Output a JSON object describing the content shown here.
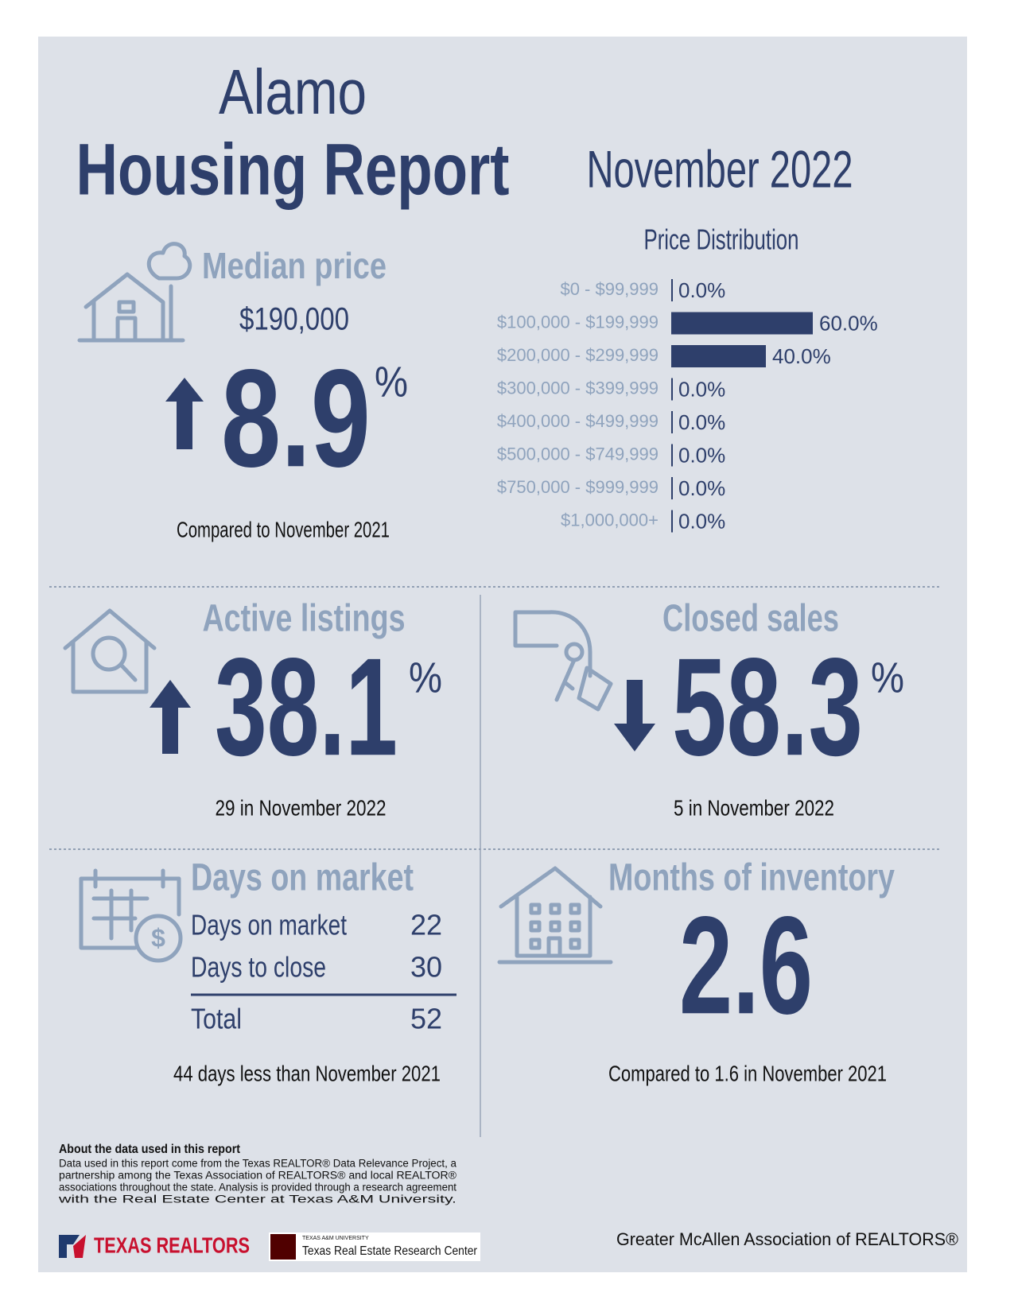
{
  "header": {
    "title_line1": "Alamo",
    "title_line2": "Housing Report",
    "period": "November 2022"
  },
  "median_price": {
    "title": "Median price",
    "price": "$190,000",
    "change": "8.9",
    "unit": "%",
    "comparison": "Compared to November 2021"
  },
  "price_distribution": {
    "type": "bar",
    "title": "Price Distribution",
    "categories": [
      "$0 - $99,999",
      "$100,000 - $199,999",
      "$200,000 - $299,999",
      "$300,000 - $399,999",
      "$400,000 - $499,999",
      "$500,000 - $749,999",
      "$750,000 - $999,999",
      "$1,000,000+"
    ],
    "values": [
      0,
      60,
      40,
      0,
      0,
      0,
      0,
      0
    ],
    "value_labels": [
      "0.0%",
      "60.0%",
      "40.0%",
      "0.0%",
      "0.0%",
      "0.0%",
      "0.0%",
      "0.0%"
    ],
    "color": "#2e3f6b"
  },
  "active_listings": {
    "title": "Active listings",
    "change": "38.1",
    "unit": "%",
    "detail": "29 in November 2022"
  },
  "closed_sales": {
    "title": "Closed sales",
    "change": "58.3",
    "unit": "%",
    "detail": "5 in November 2022"
  },
  "days_on_market": {
    "title": "Days on market",
    "rows": [
      [
        "Days on market",
        "22"
      ],
      [
        "Days to close",
        "30"
      ],
      [
        "Total",
        "52"
      ]
    ],
    "comparison": "44 days less than November 2021"
  },
  "months_of_inventory": {
    "title": "Months of inventory",
    "value": "2.6",
    "comparison": "Compared to 1.6 in November 2021"
  },
  "footer": {
    "about_title": "About the data used in this report",
    "about_lines": [
      "Data used in this report come from the Texas REALTOR® Data Relevance Project, a",
      "partnership among the Texas Association of REALTORS® and local REALTOR®",
      "associations throughout the state. Analysis is provided through a research agreement",
      "with the Real Estate Center at Texas A&M University."
    ],
    "logo_texas_realtors": "TEXAS REALTORS",
    "logo_tamu_small": "TEXAS A&M UNIVERSITY",
    "logo_tamu": "Texas Real Estate Research Center",
    "association": "Greater McAllen Association of REALTORS®"
  }
}
